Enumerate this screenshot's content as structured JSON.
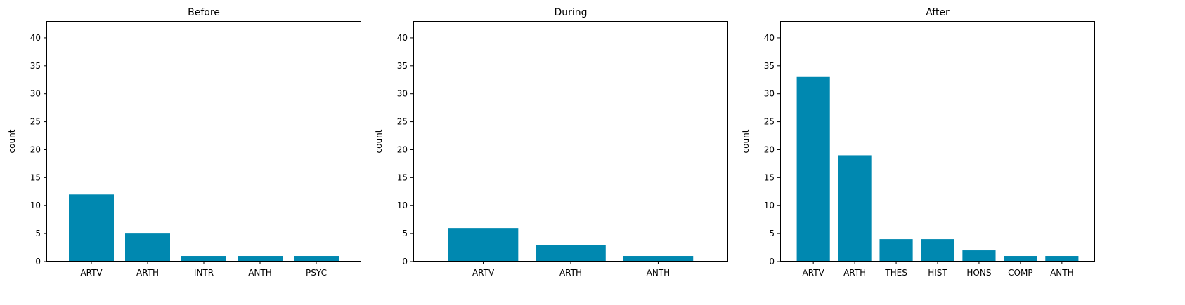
{
  "chart_data": [
    {
      "type": "bar",
      "title": "Before",
      "xlabel": "",
      "ylabel": "count",
      "categories": [
        "ARTV",
        "ARTH",
        "INTR",
        "ANTH",
        "PSYC"
      ],
      "values": [
        12,
        5,
        1,
        1,
        1
      ],
      "ylim": [
        0,
        43
      ],
      "yticks": [
        0,
        5,
        10,
        15,
        20,
        25,
        30,
        35,
        40
      ],
      "grid": false,
      "bar_color": "#0088b0"
    },
    {
      "type": "bar",
      "title": "During",
      "xlabel": "",
      "ylabel": "count",
      "categories": [
        "ARTV",
        "ARTH",
        "ANTH"
      ],
      "values": [
        6,
        3,
        1
      ],
      "ylim": [
        0,
        43
      ],
      "yticks": [
        0,
        5,
        10,
        15,
        20,
        25,
        30,
        35,
        40
      ],
      "grid": false,
      "bar_color": "#0088b0"
    },
    {
      "type": "bar",
      "title": "After",
      "xlabel": "",
      "ylabel": "count",
      "categories": [
        "ARTV",
        "ARTH",
        "THES",
        "HIST",
        "HONS",
        "COMP",
        "ANTH"
      ],
      "values": [
        33,
        19,
        4,
        4,
        2,
        1,
        1
      ],
      "ylim": [
        0,
        43
      ],
      "yticks": [
        0,
        5,
        10,
        15,
        20,
        25,
        30,
        35,
        40
      ],
      "grid": false,
      "bar_color": "#0088b0"
    }
  ]
}
